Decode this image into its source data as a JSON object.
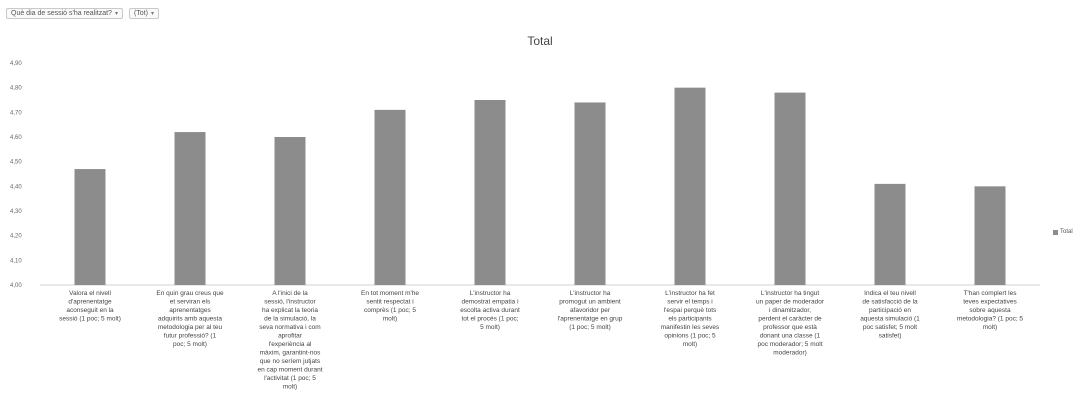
{
  "filters": [
    {
      "label": "Què dia de sessió s'ha realitzat?"
    },
    {
      "label": "(Tot)"
    }
  ],
  "chart_data": {
    "type": "bar",
    "title": "Total",
    "xlabel": "",
    "ylabel": "",
    "ylim": [
      4.0,
      4.9
    ],
    "yticks": [
      "4,00",
      "4,10",
      "4,20",
      "4,30",
      "4,40",
      "4,50",
      "4,60",
      "4,70",
      "4,80",
      "4,90"
    ],
    "grid": false,
    "legend": "right",
    "categories": [
      "Valora el nivell d'aprenentatge aconseguit en la sessió (1 poc; 5 molt)",
      "En quin grau creus que et serviran els aprenentatges adquirits amb aquesta metodologia per al teu futur professió? (1 poc; 5 molt)",
      "A l'inici de la sessió, l'instructor ha explicat la teoria de la simulació, la seva normativa i com aprofitar l'experiència al màxim, garantint-nos que no seríem jutjats en cap moment durant l'activitat (1 poc; 5 molt)",
      "En tot moment m'he sentit respectat i comprès (1 poc; 5 molt)",
      "L'instructor ha demostrat empatia i escolta activa durant tot el procés (1 poc; 5 molt)",
      "L'instructor ha promogut un ambient afavoridor per l'aprenentatge en grup (1 poc; 5 molt)",
      "L'instructor ha fet servir el temps i l'espai perquè tots els participants manifestin les seves opinions (1 poc; 5 molt)",
      "L'instructor ha tingut un paper de moderador i dinamitzador, perdent el caràcter de professor que està donant una classe (1 poc moderador; 5 molt moderador)",
      "Indica el teu nivell de satisfacció de la participació en aquesta simulació (1 poc satisfet; 5 molt satisfet)",
      "T'han complert les teves expectatives sobre aquesta metodologia? (1 poc; 5 molt)"
    ],
    "series": [
      {
        "name": "Total",
        "values": [
          4.47,
          4.62,
          4.6,
          4.71,
          4.75,
          4.74,
          4.8,
          4.78,
          4.41,
          4.4
        ]
      }
    ],
    "colors": {
      "bar": "#8c8c8c",
      "text": "#444444"
    }
  }
}
